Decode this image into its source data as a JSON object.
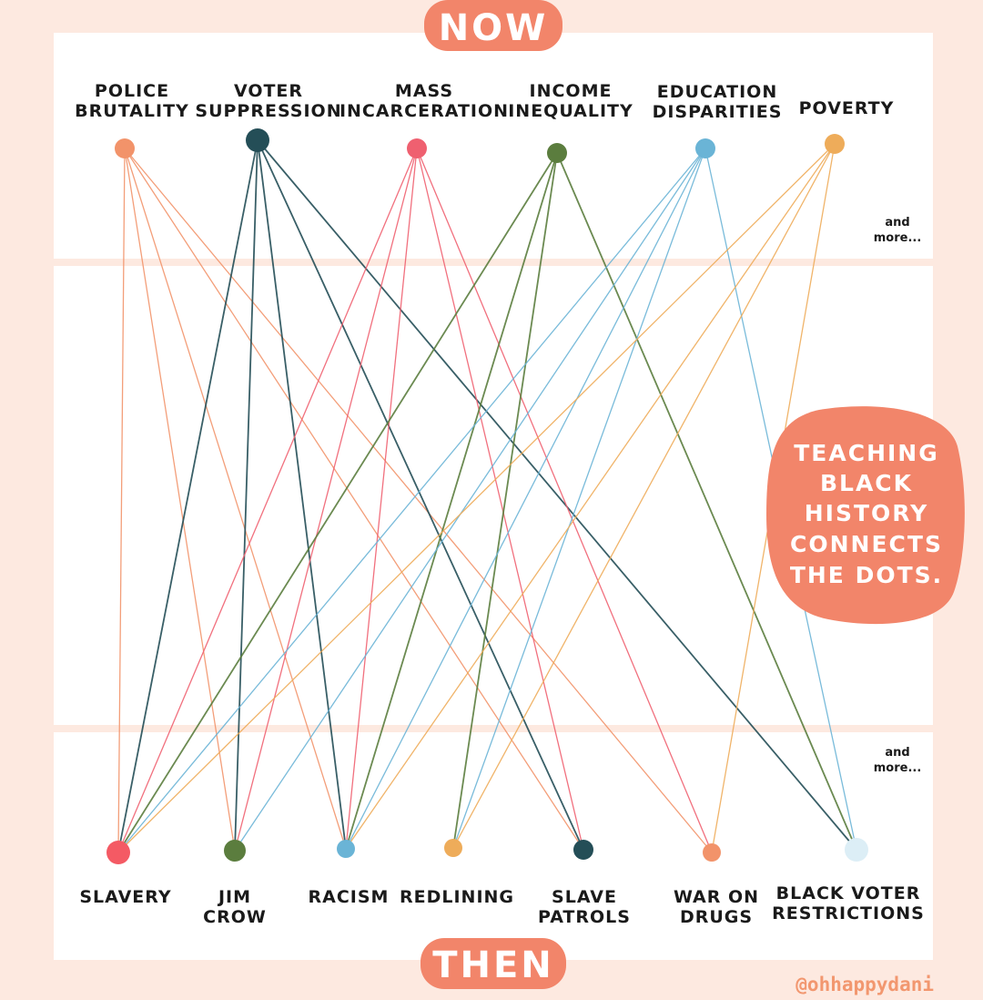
{
  "header": {
    "now_label": "NOW",
    "then_label": "THEN"
  },
  "now_nodes": [
    {
      "id": "police-brutality",
      "lines": [
        "POLICE",
        "BRUTALITY"
      ],
      "color": "#f2936a"
    },
    {
      "id": "voter-suppression",
      "lines": [
        "VOTER",
        "SUPPRESSION"
      ],
      "color": "#244e57"
    },
    {
      "id": "mass-incarceration",
      "lines": [
        "MASS",
        "INCARCERATION"
      ],
      "color": "#ef6070"
    },
    {
      "id": "income-inequality",
      "lines": [
        "INCOME",
        "INEQUALITY"
      ],
      "color": "#5b7d3e"
    },
    {
      "id": "education-disparities",
      "lines": [
        "EDUCATION",
        "DISPARITIES"
      ],
      "color": "#6ab4d6"
    },
    {
      "id": "poverty",
      "lines": [
        "POVERTY"
      ],
      "color": "#eeac5a"
    }
  ],
  "then_nodes": [
    {
      "id": "slavery",
      "lines": [
        "SLAVERY"
      ],
      "color": "#f45a64"
    },
    {
      "id": "jim-crow",
      "lines": [
        "JIM",
        "CROW"
      ],
      "color": "#5b7d3e"
    },
    {
      "id": "racism",
      "lines": [
        "RACISM"
      ],
      "color": "#6ab4d6"
    },
    {
      "id": "redlining",
      "lines": [
        "REDLINING"
      ],
      "color": "#eeac5a"
    },
    {
      "id": "slave-patrols",
      "lines": [
        "SLAVE",
        "PATROLS"
      ],
      "color": "#244e57"
    },
    {
      "id": "war-on-drugs",
      "lines": [
        "WAR ON",
        "DRUGS"
      ],
      "color": "#f2936a"
    },
    {
      "id": "black-voter-restrictions",
      "lines": [
        "BLACK VOTER",
        "RESTRICTIONS"
      ],
      "color": "#dceef6"
    }
  ],
  "connections": [
    [
      "police-brutality",
      "slavery"
    ],
    [
      "police-brutality",
      "jim-crow"
    ],
    [
      "police-brutality",
      "racism"
    ],
    [
      "police-brutality",
      "slave-patrols"
    ],
    [
      "police-brutality",
      "war-on-drugs"
    ],
    [
      "voter-suppression",
      "slavery"
    ],
    [
      "voter-suppression",
      "jim-crow"
    ],
    [
      "voter-suppression",
      "racism"
    ],
    [
      "voter-suppression",
      "slave-patrols"
    ],
    [
      "voter-suppression",
      "black-voter-restrictions"
    ],
    [
      "mass-incarceration",
      "slavery"
    ],
    [
      "mass-incarceration",
      "jim-crow"
    ],
    [
      "mass-incarceration",
      "racism"
    ],
    [
      "mass-incarceration",
      "slave-patrols"
    ],
    [
      "mass-incarceration",
      "war-on-drugs"
    ],
    [
      "income-inequality",
      "slavery"
    ],
    [
      "income-inequality",
      "racism"
    ],
    [
      "income-inequality",
      "redlining"
    ],
    [
      "income-inequality",
      "black-voter-restrictions"
    ],
    [
      "education-disparities",
      "slavery"
    ],
    [
      "education-disparities",
      "jim-crow"
    ],
    [
      "education-disparities",
      "racism"
    ],
    [
      "education-disparities",
      "redlining"
    ],
    [
      "education-disparities",
      "black-voter-restrictions"
    ],
    [
      "poverty",
      "slavery"
    ],
    [
      "poverty",
      "racism"
    ],
    [
      "poverty",
      "redlining"
    ],
    [
      "poverty",
      "war-on-drugs"
    ]
  ],
  "more_notes": {
    "top": [
      "and",
      "more..."
    ],
    "bottom": [
      "and",
      "more..."
    ]
  },
  "callout": {
    "lines": [
      "TEACHING",
      "BLACK",
      "HISTORY",
      "CONNECTS",
      "THE DOTS."
    ]
  },
  "credit": "@ohhappydani",
  "colors": {
    "background": "#fde9e0",
    "panel": "#ffffff",
    "accent": "#f2856a"
  }
}
